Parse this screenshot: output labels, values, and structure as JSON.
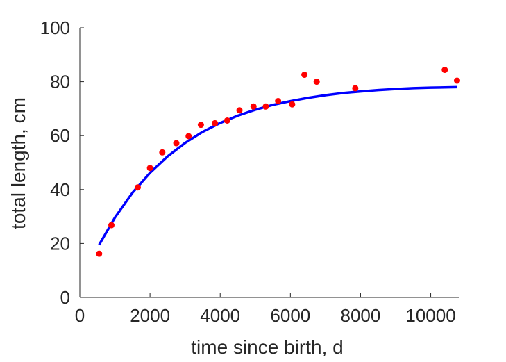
{
  "chart_data": {
    "type": "scatter",
    "title": "",
    "xlabel": "time since birth, d",
    "ylabel": "total length, cm",
    "xlim": [
      0,
      10800
    ],
    "ylim": [
      0,
      100
    ],
    "xticks": [
      0,
      2000,
      4000,
      6000,
      8000,
      10000
    ],
    "yticks": [
      0,
      20,
      40,
      60,
      80,
      100
    ],
    "grid": false,
    "series": [
      {
        "kind": "points",
        "color": "#ff0000",
        "x": [
          550,
          900,
          1650,
          2000,
          2350,
          2750,
          3100,
          3450,
          3850,
          4200,
          4550,
          4950,
          5300,
          5650,
          6050,
          6400,
          6750,
          7850,
          10400,
          10750
        ],
        "y": [
          16.2,
          26.8,
          40.8,
          48.0,
          53.8,
          57.2,
          59.8,
          64.0,
          64.6,
          65.6,
          69.4,
          70.8,
          70.8,
          72.8,
          71.6,
          82.6,
          80.0,
          77.6,
          84.4,
          80.4
        ]
      },
      {
        "kind": "line",
        "color": "#0000ff",
        "x": [
          550,
          1000,
          1500,
          2000,
          2500,
          3000,
          3500,
          4000,
          4500,
          5000,
          5500,
          6000,
          6500,
          7000,
          7500,
          8000,
          8500,
          9000,
          9500,
          10000,
          10400,
          10750
        ],
        "y": [
          19.5,
          29.6,
          38.8,
          46.2,
          52.3,
          57.3,
          61.4,
          64.7,
          67.4,
          69.6,
          71.4,
          72.8,
          74.0,
          75.0,
          75.8,
          76.4,
          76.9,
          77.3,
          77.6,
          77.8,
          77.9,
          78.0
        ]
      }
    ]
  }
}
